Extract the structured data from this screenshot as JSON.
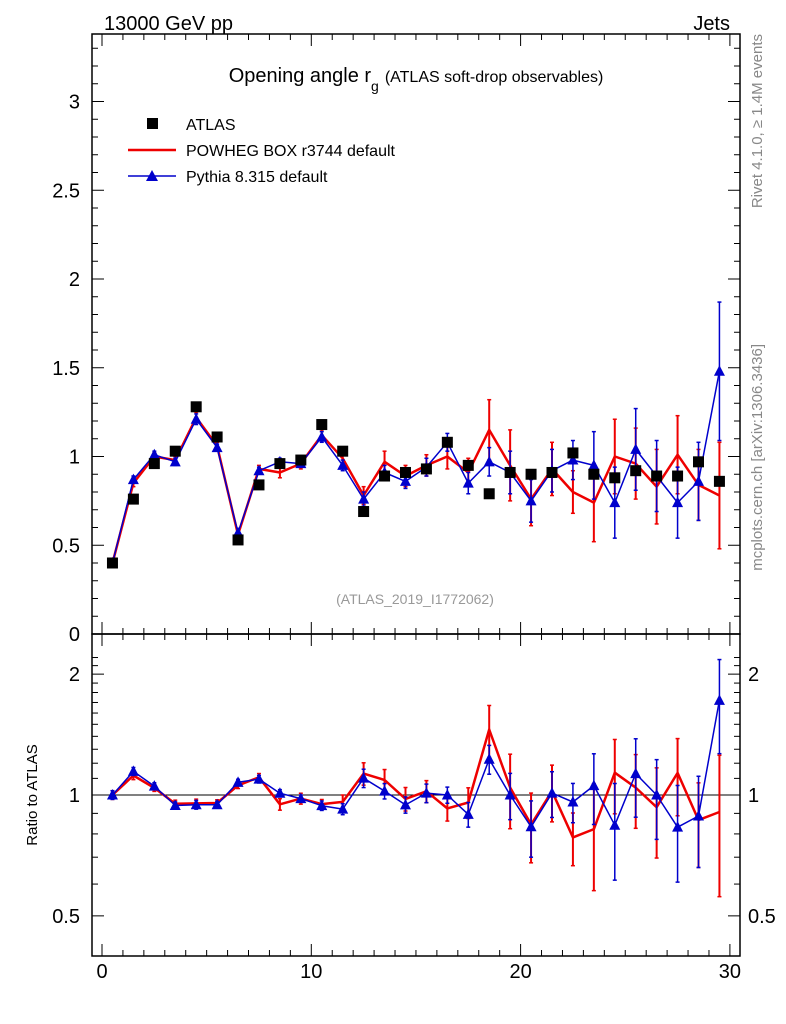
{
  "header": {
    "left": "13000 GeV pp",
    "right": "Jets"
  },
  "side_labels": {
    "rivet": "Rivet 4.1.0, ≥ 1.4M events",
    "mcplots": "mcplots.cern.ch [arXiv:1306.3436]"
  },
  "chart_data": {
    "type": "scatter",
    "title_main": "Opening angle r",
    "title_sub": "g",
    "title_tail": "(ATLAS soft-drop observables)",
    "analysis_tag": "(ATLAS_2019_I1772062)",
    "ratio_ylabel": "Ratio to ATLAS",
    "xlim": [
      -0.5,
      30.5
    ],
    "top_ylim": [
      0,
      3.35
    ],
    "ratio_ylim": [
      0.4,
      2.3
    ],
    "top_yticks": [
      0,
      0.5,
      1,
      1.5,
      2,
      2.5,
      3
    ],
    "top_ytick_labels": [
      "0",
      "0.5",
      "1",
      "1.5",
      "2",
      "2.5",
      "3"
    ],
    "ratio_yticks": [
      0.5,
      1,
      2
    ],
    "ratio_ytick_labels": [
      "0.5",
      "1",
      "2"
    ],
    "xticks": [
      0,
      10,
      20,
      30
    ],
    "xtick_labels": [
      "0",
      "10",
      "20",
      "30"
    ],
    "colors": {
      "data": "#000000",
      "powheg": "#ee0000",
      "pythia": "#0000cc"
    },
    "legend": [
      {
        "key": "data",
        "label": "ATLAS"
      },
      {
        "key": "powheg",
        "label": "POWHEG BOX r3744 default"
      },
      {
        "key": "pythia",
        "label": "Pythia 8.315 default"
      }
    ],
    "x": [
      0.5,
      1.5,
      2.5,
      3.5,
      4.5,
      5.5,
      6.5,
      7.5,
      8.5,
      9.5,
      10.5,
      11.5,
      12.5,
      13.5,
      14.5,
      15.5,
      16.5,
      17.5,
      18.5,
      19.5,
      20.5,
      21.5,
      22.5,
      23.5,
      24.5,
      25.5,
      26.5,
      27.5,
      28.5,
      29.5
    ],
    "series": [
      {
        "name": "ATLAS",
        "key": "data",
        "values": [
          0.4,
          0.76,
          0.96,
          1.03,
          1.28,
          1.11,
          0.53,
          0.84,
          0.96,
          0.98,
          1.18,
          1.03,
          0.69,
          0.89,
          0.91,
          0.93,
          1.08,
          0.95,
          0.79,
          0.91,
          0.9,
          0.91,
          1.02,
          0.9,
          0.88,
          0.92,
          0.89,
          0.89,
          0.97,
          0.86
        ],
        "errors": [
          0,
          0,
          0,
          0,
          0,
          0,
          0,
          0,
          0,
          0,
          0,
          0,
          0,
          0,
          0,
          0,
          0,
          0,
          0,
          0,
          0,
          0,
          0,
          0,
          0,
          0,
          0,
          0,
          0,
          0
        ]
      },
      {
        "name": "POWHEG BOX r3744 default",
        "key": "powheg",
        "values": [
          0.4,
          0.85,
          1.0,
          0.98,
          1.22,
          1.06,
          0.56,
          0.93,
          0.91,
          0.96,
          1.12,
          0.99,
          0.78,
          0.97,
          0.89,
          0.95,
          1.0,
          0.91,
          1.15,
          0.95,
          0.76,
          0.93,
          0.8,
          0.74,
          1.0,
          0.96,
          0.83,
          1.01,
          0.84,
          0.78
        ],
        "errors": [
          0.01,
          0.02,
          0.02,
          0.02,
          0.03,
          0.02,
          0.01,
          0.02,
          0.03,
          0.03,
          0.03,
          0.04,
          0.05,
          0.06,
          0.06,
          0.06,
          0.07,
          0.08,
          0.17,
          0.2,
          0.15,
          0.15,
          0.12,
          0.22,
          0.21,
          0.2,
          0.21,
          0.22,
          0.2,
          0.3
        ]
      },
      {
        "name": "Pythia 8.315 default",
        "key": "pythia",
        "values": [
          0.4,
          0.87,
          1.01,
          0.97,
          1.21,
          1.05,
          0.57,
          0.92,
          0.97,
          0.96,
          1.11,
          0.95,
          0.76,
          0.91,
          0.86,
          0.94,
          1.08,
          0.85,
          0.97,
          0.91,
          0.75,
          0.92,
          0.98,
          0.95,
          0.74,
          1.04,
          0.89,
          0.74,
          0.86,
          1.48
        ],
        "errors": [
          0.01,
          0.02,
          0.02,
          0.02,
          0.03,
          0.02,
          0.01,
          0.02,
          0.02,
          0.02,
          0.03,
          0.03,
          0.04,
          0.04,
          0.04,
          0.05,
          0.05,
          0.06,
          0.08,
          0.12,
          0.12,
          0.12,
          0.11,
          0.19,
          0.2,
          0.23,
          0.2,
          0.2,
          0.22,
          0.39
        ]
      }
    ]
  }
}
